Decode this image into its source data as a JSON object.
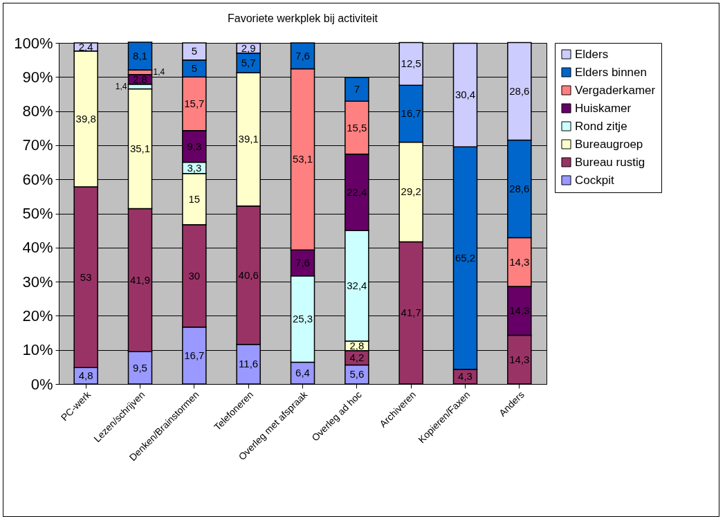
{
  "chart_data": {
    "type": "bar",
    "title": "Favoriete werkplek bij activiteit",
    "stacked": true,
    "grid": "y",
    "legend": "right",
    "categories": [
      "PC-werk",
      "Lezen/schrijven",
      "Denken/Brainstormen",
      "Telefoneren",
      "Overleg met afspraak",
      "Overleg ad hoc",
      "Archiveren",
      "Kopieren/Faxen",
      "Anders"
    ],
    "ylim": [
      0,
      100
    ],
    "yticks": [
      {
        "value": 0,
        "label": "0%"
      },
      {
        "value": 10,
        "label": "10%"
      },
      {
        "value": 20,
        "label": "20%"
      },
      {
        "value": 30,
        "label": "30%"
      },
      {
        "value": 40,
        "label": "40%"
      },
      {
        "value": 50,
        "label": "50%"
      },
      {
        "value": 60,
        "label": "60%"
      },
      {
        "value": 70,
        "label": "70%"
      },
      {
        "value": 80,
        "label": "80%"
      },
      {
        "value": 90,
        "label": "90%"
      },
      {
        "value": 100,
        "label": "100%"
      }
    ],
    "series": [
      {
        "name": "Cockpit",
        "color": "#9999ff",
        "values": [
          4.8,
          9.5,
          16.7,
          11.6,
          6.4,
          5.6,
          null,
          null,
          null
        ],
        "value_labels": [
          "4,8",
          "9,5",
          "16,7",
          "11,6",
          "6,4",
          "5,6",
          null,
          null,
          null
        ]
      },
      {
        "name": "Bureau rustig",
        "color": "#993366",
        "values": [
          53,
          41.9,
          30,
          40.6,
          null,
          4.2,
          41.7,
          4.3,
          14.3
        ],
        "value_labels": [
          "53",
          "41,9",
          "30",
          "40,6",
          null,
          "4,2",
          "41,7",
          "4,3",
          "14,3"
        ]
      },
      {
        "name": "Bureaugroep",
        "color": "#ffffcc",
        "values": [
          39.8,
          35.1,
          15,
          39.1,
          null,
          2.8,
          29.2,
          null,
          null
        ],
        "value_labels": [
          "39,8",
          "35,1",
          "15",
          "39,1",
          null,
          "2,8",
          "29,2",
          null,
          null
        ]
      },
      {
        "name": "Rond zitje",
        "color": "#ccffff",
        "values": [
          null,
          1.4,
          3.3,
          null,
          25.3,
          32.4,
          null,
          null,
          null
        ],
        "value_labels": [
          null,
          "1,4",
          "3,3",
          null,
          "25,3",
          "32,4",
          null,
          null,
          null
        ]
      },
      {
        "name": "Huiskamer",
        "color": "#660066",
        "values": [
          null,
          2.8,
          9.3,
          null,
          7.6,
          22.4,
          null,
          null,
          14.3
        ],
        "value_labels": [
          null,
          "2,8",
          "9,3",
          null,
          "7,6",
          "22,4",
          null,
          null,
          "14,3"
        ]
      },
      {
        "name": "Vergaderkamer",
        "color": "#ff8080",
        "values": [
          null,
          1.4,
          15.7,
          null,
          53.1,
          15.5,
          null,
          null,
          14.3
        ],
        "value_labels": [
          null,
          "1,4",
          "15,7",
          null,
          "53,1",
          "15,5",
          null,
          null,
          "14,3"
        ]
      },
      {
        "name": "Elders binnen",
        "color": "#0066cc",
        "values": [
          null,
          8.1,
          5,
          5.7,
          7.6,
          7,
          16.7,
          65.2,
          28.6
        ],
        "value_labels": [
          null,
          "8,1",
          "5",
          "5,7",
          "7,6",
          "7",
          "16,7",
          "65,2",
          "28,6"
        ]
      },
      {
        "name": "Elders",
        "color": "#ccccff",
        "values": [
          2.4,
          null,
          5,
          2.9,
          null,
          null,
          12.5,
          30.4,
          28.6
        ],
        "value_labels": [
          "2,4",
          null,
          "5",
          "2,9",
          null,
          null,
          "12,5",
          "30,4",
          "28,6"
        ]
      }
    ]
  }
}
